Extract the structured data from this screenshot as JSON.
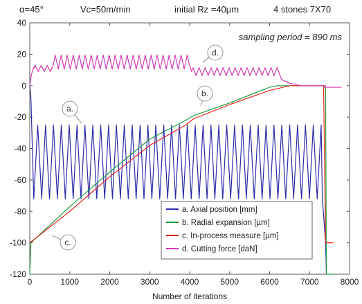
{
  "chart_data": {
    "type": "line",
    "header": {
      "angle": "α=45°",
      "speed": "Vc=50m/min",
      "roughness": "initial Rz =40µm",
      "stones": "4 stones 7X70"
    },
    "annotation": "sampling period = 890 ms",
    "xlabel": "Number of iterations",
    "ylabel": "",
    "xlim": [
      0,
      8000
    ],
    "ylim": [
      -120,
      40
    ],
    "xticks": [
      0,
      1000,
      2000,
      3000,
      4000,
      5000,
      6000,
      7000,
      8000
    ],
    "yticks": [
      40,
      20,
      0,
      -20,
      -40,
      -60,
      -80,
      -100,
      -120
    ],
    "grid": false,
    "legend_position": "bottom-right",
    "curve_labels": [
      "a.",
      "b.",
      "c.",
      "d."
    ],
    "series": [
      {
        "name": "a. Axial position [mm]",
        "color": "#2a2aa8",
        "shape": "triangle oscillation",
        "points": [
          [
            0,
            0
          ],
          [
            30,
            -8
          ],
          [
            100,
            -72
          ],
          [
            190,
            -25
          ],
          [
            7320,
            -25
          ],
          [
            7320,
            -72
          ],
          [
            7400,
            -100
          ],
          [
            7420,
            -120
          ]
        ],
        "oscillation": {
          "x_start": 100,
          "x_end": 7320,
          "period": 197,
          "high": -25,
          "low": -72
        }
      },
      {
        "name": "b. Radial expansion [µm]",
        "color": "#1e9a3c",
        "points": [
          [
            0,
            -120
          ],
          [
            30,
            -100
          ],
          [
            1000,
            -77
          ],
          [
            2000,
            -55
          ],
          [
            3000,
            -34
          ],
          [
            3900,
            -22
          ],
          [
            4100,
            -19
          ],
          [
            5000,
            -11
          ],
          [
            6000,
            -1
          ],
          [
            6200,
            0
          ],
          [
            7350,
            0
          ],
          [
            7400,
            -2
          ],
          [
            7420,
            -120
          ],
          [
            7600,
            -120
          ]
        ]
      },
      {
        "name": "c. In-process measure [µm]",
        "color": "#e8231c",
        "points": [
          [
            0,
            -100
          ],
          [
            1000,
            -80
          ],
          [
            2000,
            -58
          ],
          [
            3000,
            -38
          ],
          [
            3900,
            -25
          ],
          [
            4100,
            -21
          ],
          [
            5000,
            -12
          ],
          [
            6000,
            -3
          ],
          [
            6500,
            0
          ],
          [
            7350,
            0
          ],
          [
            7400,
            -100
          ],
          [
            7600,
            -100
          ]
        ]
      },
      {
        "name": "d. Cutting force [daN]",
        "color": "#d13ab2",
        "shape": "noisy periodic",
        "points": [
          [
            0,
            0
          ],
          [
            50,
            8
          ],
          [
            150,
            13
          ],
          [
            700,
            18
          ],
          [
            4000,
            18
          ],
          [
            4050,
            11
          ],
          [
            6200,
            11
          ],
          [
            6300,
            4
          ],
          [
            6800,
            0
          ],
          [
            7400,
            0
          ],
          [
            7400,
            -1
          ],
          [
            7800,
            -1
          ]
        ],
        "oscillation_segments": [
          {
            "x_start": 100,
            "x_end": 600,
            "base": 11,
            "amplitude": 4,
            "period": 150
          },
          {
            "x_start": 600,
            "x_end": 4000,
            "base": 15,
            "amplitude": 9,
            "period": 150
          },
          {
            "x_start": 4050,
            "x_end": 6250,
            "base": 9,
            "amplitude": 5,
            "period": 150
          }
        ]
      }
    ]
  }
}
